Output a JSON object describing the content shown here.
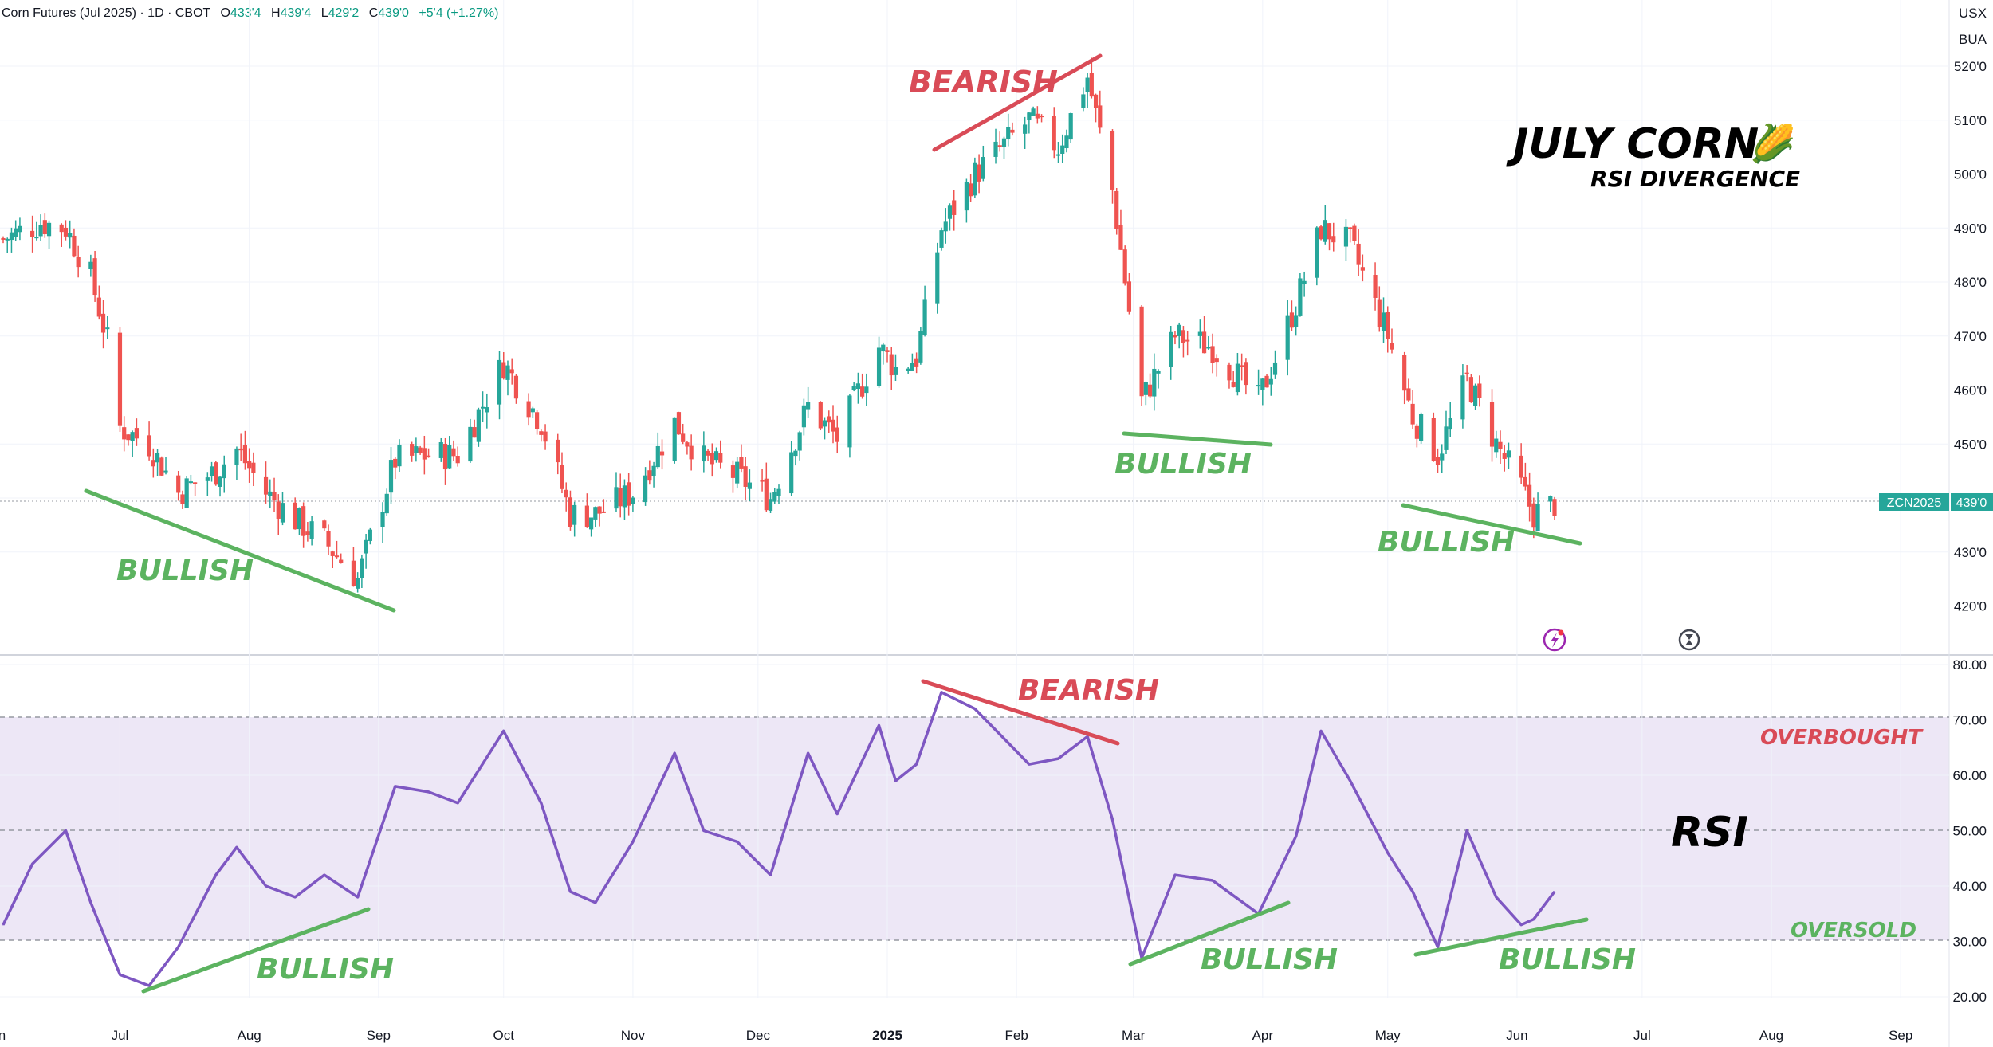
{
  "header": {
    "symbol_title": "Corn Futures (Jul 2025) · 1D · CBOT",
    "o_label": "O",
    "o_value": "433'4",
    "h_label": "H",
    "h_value": "439'4",
    "l_label": "L",
    "l_value": "429'2",
    "c_label": "C",
    "c_value": "439'0",
    "change": "+5'4 (+1.27%)"
  },
  "price_axis": {
    "currency": "USX",
    "unit": "BUA",
    "ticks": [
      "520'0",
      "510'0",
      "500'0",
      "490'0",
      "480'0",
      "470'0",
      "460'0",
      "450'0",
      "440'0",
      "430'0",
      "420'0"
    ],
    "symbol_badge": "ZCN2025",
    "price_badge": "439'0"
  },
  "rsi_axis": {
    "ticks": [
      "80.00",
      "70.00",
      "60.00",
      "50.00",
      "40.00",
      "30.00",
      "20.00"
    ]
  },
  "time_axis": {
    "labels": [
      "Jun",
      "Jul",
      "Aug",
      "Sep",
      "Oct",
      "Nov",
      "Dec",
      "2025",
      "Feb",
      "Mar",
      "Apr",
      "May",
      "Jun",
      "Jul",
      "Aug",
      "Sep"
    ]
  },
  "annotations": {
    "title": "JULY CORN",
    "title_emoji": "🌽",
    "subtitle": "RSI DIVERGENCE",
    "rsi_label": "RSI",
    "bearish": "BEARISH",
    "bullish": "BULLISH",
    "overbought": "OVERBOUGHT",
    "oversold": "OVERSOLD"
  },
  "colors": {
    "up": "#26a69a",
    "down": "#ef5350",
    "rsi_line": "#7e57c2",
    "rsi_band": "#ede7f6",
    "bullish": "#5cb360",
    "bearish": "#d94b57"
  },
  "chart_data": [
    {
      "type": "candlestick",
      "symbol": "ZCN2025",
      "ylim": [
        411,
        528
      ],
      "ticks": [
        420,
        430,
        440,
        450,
        460,
        470,
        480,
        490,
        500,
        510,
        520
      ],
      "last_price": 439,
      "close_approx": [
        {
          "x": "2024-06-03",
          "y": 488
        },
        {
          "x": "2024-06-12",
          "y": 491
        },
        {
          "x": "2024-06-18",
          "y": 490
        },
        {
          "x": "2024-06-24",
          "y": 481
        },
        {
          "x": "2024-06-28",
          "y": 469
        },
        {
          "x": "2024-07-01",
          "y": 453
        },
        {
          "x": "2024-07-08",
          "y": 450
        },
        {
          "x": "2024-07-15",
          "y": 441
        },
        {
          "x": "2024-07-24",
          "y": 445
        },
        {
          "x": "2024-07-29",
          "y": 449
        },
        {
          "x": "2024-08-05",
          "y": 441
        },
        {
          "x": "2024-08-12",
          "y": 436
        },
        {
          "x": "2024-08-19",
          "y": 432
        },
        {
          "x": "2024-08-27",
          "y": 425
        },
        {
          "x": "2024-09-05",
          "y": 447
        },
        {
          "x": "2024-09-13",
          "y": 448
        },
        {
          "x": "2024-09-20",
          "y": 448
        },
        {
          "x": "2024-10-01",
          "y": 465
        },
        {
          "x": "2024-10-10",
          "y": 454
        },
        {
          "x": "2024-10-17",
          "y": 437
        },
        {
          "x": "2024-10-23",
          "y": 437
        },
        {
          "x": "2024-11-01",
          "y": 441
        },
        {
          "x": "2024-11-11",
          "y": 454
        },
        {
          "x": "2024-11-18",
          "y": 447
        },
        {
          "x": "2024-11-26",
          "y": 444
        },
        {
          "x": "2024-12-04",
          "y": 440
        },
        {
          "x": "2024-12-13",
          "y": 457
        },
        {
          "x": "2024-12-20",
          "y": 451
        },
        {
          "x": "2024-12-30",
          "y": 468
        },
        {
          "x": "2025-01-03",
          "y": 464
        },
        {
          "x": "2025-01-08",
          "y": 466
        },
        {
          "x": "2025-01-14",
          "y": 490
        },
        {
          "x": "2025-01-22",
          "y": 500
        },
        {
          "x": "2025-02-04",
          "y": 510
        },
        {
          "x": "2025-02-11",
          "y": 505
        },
        {
          "x": "2025-02-18",
          "y": 518
        },
        {
          "x": "2025-02-24",
          "y": 497
        },
        {
          "x": "2025-03-03",
          "y": 458
        },
        {
          "x": "2025-03-11",
          "y": 470
        },
        {
          "x": "2025-03-20",
          "y": 468
        },
        {
          "x": "2025-03-31",
          "y": 458
        },
        {
          "x": "2025-04-09",
          "y": 476
        },
        {
          "x": "2025-04-15",
          "y": 490
        },
        {
          "x": "2025-04-22",
          "y": 487
        },
        {
          "x": "2025-05-01",
          "y": 470
        },
        {
          "x": "2025-05-07",
          "y": 455
        },
        {
          "x": "2025-05-13",
          "y": 448
        },
        {
          "x": "2025-05-20",
          "y": 462
        },
        {
          "x": "2025-05-27",
          "y": 450
        },
        {
          "x": "2025-06-02",
          "y": 442
        },
        {
          "x": "2025-06-05",
          "y": 437
        },
        {
          "x": "2025-06-10",
          "y": 439
        }
      ]
    },
    {
      "type": "line",
      "name": "RSI",
      "ylim": [
        16,
        82
      ],
      "ticks": [
        20,
        30,
        40,
        50,
        60,
        70,
        80
      ],
      "levels": {
        "overbought": 70,
        "middle": 50,
        "oversold": 30
      },
      "values": [
        {
          "x": "2024-06-03",
          "y": 33
        },
        {
          "x": "2024-06-10",
          "y": 44
        },
        {
          "x": "2024-06-18",
          "y": 50
        },
        {
          "x": "2024-06-24",
          "y": 37
        },
        {
          "x": "2024-07-01",
          "y": 24
        },
        {
          "x": "2024-07-08",
          "y": 22
        },
        {
          "x": "2024-07-15",
          "y": 29
        },
        {
          "x": "2024-07-24",
          "y": 42
        },
        {
          "x": "2024-07-29",
          "y": 47
        },
        {
          "x": "2024-08-05",
          "y": 40
        },
        {
          "x": "2024-08-12",
          "y": 38
        },
        {
          "x": "2024-08-19",
          "y": 42
        },
        {
          "x": "2024-08-27",
          "y": 38
        },
        {
          "x": "2024-09-05",
          "y": 58
        },
        {
          "x": "2024-09-13",
          "y": 57
        },
        {
          "x": "2024-09-20",
          "y": 55
        },
        {
          "x": "2024-10-01",
          "y": 68
        },
        {
          "x": "2024-10-10",
          "y": 55
        },
        {
          "x": "2024-10-17",
          "y": 39
        },
        {
          "x": "2024-10-23",
          "y": 37
        },
        {
          "x": "2024-11-01",
          "y": 48
        },
        {
          "x": "2024-11-11",
          "y": 64
        },
        {
          "x": "2024-11-18",
          "y": 50
        },
        {
          "x": "2024-11-26",
          "y": 48
        },
        {
          "x": "2024-12-04",
          "y": 42
        },
        {
          "x": "2024-12-13",
          "y": 64
        },
        {
          "x": "2024-12-20",
          "y": 53
        },
        {
          "x": "2024-12-30",
          "y": 69
        },
        {
          "x": "2025-01-03",
          "y": 59
        },
        {
          "x": "2025-01-08",
          "y": 62
        },
        {
          "x": "2025-01-14",
          "y": 75
        },
        {
          "x": "2025-01-22",
          "y": 72
        },
        {
          "x": "2025-02-04",
          "y": 62
        },
        {
          "x": "2025-02-11",
          "y": 63
        },
        {
          "x": "2025-02-18",
          "y": 67
        },
        {
          "x": "2025-02-24",
          "y": 52
        },
        {
          "x": "2025-03-03",
          "y": 27
        },
        {
          "x": "2025-03-11",
          "y": 42
        },
        {
          "x": "2025-03-20",
          "y": 41
        },
        {
          "x": "2025-03-31",
          "y": 35
        },
        {
          "x": "2025-04-09",
          "y": 49
        },
        {
          "x": "2025-04-15",
          "y": 68
        },
        {
          "x": "2025-04-22",
          "y": 59
        },
        {
          "x": "2025-05-01",
          "y": 46
        },
        {
          "x": "2025-05-07",
          "y": 39
        },
        {
          "x": "2025-05-13",
          "y": 29
        },
        {
          "x": "2025-05-20",
          "y": 50
        },
        {
          "x": "2025-05-27",
          "y": 38
        },
        {
          "x": "2025-06-02",
          "y": 33
        },
        {
          "x": "2025-06-05",
          "y": 34
        },
        {
          "x": "2025-06-10",
          "y": 39
        }
      ]
    }
  ]
}
